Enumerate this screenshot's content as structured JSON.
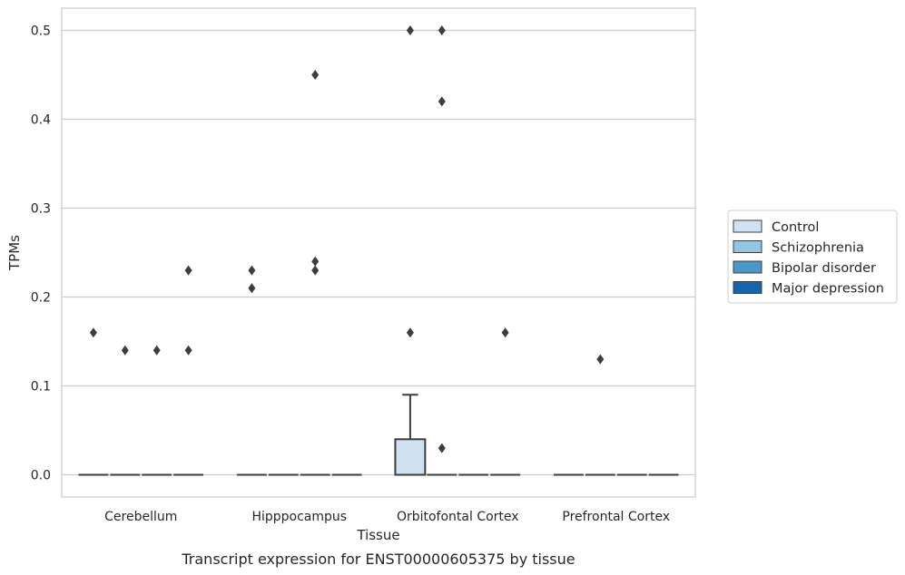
{
  "chart_data": {
    "type": "box",
    "title": "",
    "caption": "Transcript expression for ENST00000605375 by tissue",
    "xlabel": "Tissue",
    "ylabel": "TPMs",
    "ylim": [
      -0.025,
      0.525
    ],
    "yticks": [
      0.0,
      0.1,
      0.2,
      0.3,
      0.4,
      0.5
    ],
    "ytick_labels": [
      "0.0",
      "0.1",
      "0.2",
      "0.3",
      "0.4",
      "0.5"
    ],
    "categories": [
      "Cerebellum",
      "Hipppocampus",
      "Orbitofontal Cortex",
      "Prefrontal Cortex"
    ],
    "grid": "horizontal",
    "legend_position": "right",
    "series": [
      {
        "name": "Control",
        "color": "#d0e1f2",
        "boxes": [
          {
            "q1": 0,
            "median": 0,
            "q3": 0,
            "whisker_low": 0,
            "whisker_high": 0,
            "outliers": [
              0.16
            ]
          },
          {
            "q1": 0,
            "median": 0,
            "q3": 0,
            "whisker_low": 0,
            "whisker_high": 0,
            "outliers": [
              0.23,
              0.21
            ]
          },
          {
            "q1": 0,
            "median": 0,
            "q3": 0.04,
            "whisker_low": 0,
            "whisker_high": 0.09,
            "outliers": [
              0.5,
              0.16
            ]
          },
          {
            "q1": 0,
            "median": 0,
            "q3": 0,
            "whisker_low": 0,
            "whisker_high": 0,
            "outliers": []
          }
        ]
      },
      {
        "name": "Schizophrenia",
        "color": "#94c4df",
        "boxes": [
          {
            "q1": 0,
            "median": 0,
            "q3": 0,
            "whisker_low": 0,
            "whisker_high": 0,
            "outliers": [
              0.14
            ]
          },
          {
            "q1": 0,
            "median": 0,
            "q3": 0,
            "whisker_low": 0,
            "whisker_high": 0,
            "outliers": []
          },
          {
            "q1": 0,
            "median": 0,
            "q3": 0,
            "whisker_low": 0,
            "whisker_high": 0,
            "outliers": [
              0.5,
              0.42,
              0.03
            ]
          },
          {
            "q1": 0,
            "median": 0,
            "q3": 0,
            "whisker_low": 0,
            "whisker_high": 0,
            "outliers": [
              0.13
            ]
          }
        ]
      },
      {
        "name": "Bipolar disorder",
        "color": "#4a98c9",
        "boxes": [
          {
            "q1": 0,
            "median": 0,
            "q3": 0,
            "whisker_low": 0,
            "whisker_high": 0,
            "outliers": [
              0.14
            ]
          },
          {
            "q1": 0,
            "median": 0,
            "q3": 0,
            "whisker_low": 0,
            "whisker_high": 0,
            "outliers": [
              0.45,
              0.24,
              0.23
            ]
          },
          {
            "q1": 0,
            "median": 0,
            "q3": 0,
            "whisker_low": 0,
            "whisker_high": 0,
            "outliers": []
          },
          {
            "q1": 0,
            "median": 0,
            "q3": 0,
            "whisker_low": 0,
            "whisker_high": 0,
            "outliers": []
          }
        ]
      },
      {
        "name": "Major depression",
        "color": "#1764ab",
        "boxes": [
          {
            "q1": 0,
            "median": 0,
            "q3": 0,
            "whisker_low": 0,
            "whisker_high": 0,
            "outliers": [
              0.23,
              0.14
            ]
          },
          {
            "q1": 0,
            "median": 0,
            "q3": 0,
            "whisker_low": 0,
            "whisker_high": 0,
            "outliers": []
          },
          {
            "q1": 0,
            "median": 0,
            "q3": 0,
            "whisker_low": 0,
            "whisker_high": 0,
            "outliers": [
              0.16
            ]
          },
          {
            "q1": 0,
            "median": 0,
            "q3": 0,
            "whisker_low": 0,
            "whisker_high": 0,
            "outliers": []
          }
        ]
      }
    ]
  }
}
